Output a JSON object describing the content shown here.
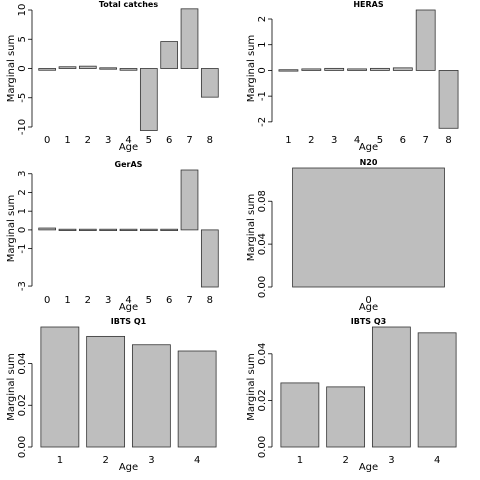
{
  "chart_data": [
    {
      "type": "bar",
      "title": "Total catches",
      "xlabel": "Age",
      "ylabel": "Marginal sum",
      "categories": [
        "0",
        "1",
        "2",
        "3",
        "4",
        "5",
        "6",
        "7",
        "8"
      ],
      "values": [
        -0.3,
        0.3,
        0.4,
        0.2,
        -0.3,
        -10.6,
        4.6,
        10.2,
        -4.9
      ],
      "ylim": [
        -10,
        10
      ],
      "yticks": [
        -10,
        -5,
        0,
        5,
        10
      ],
      "bar_color": "#bebebe"
    },
    {
      "type": "bar",
      "title": "HERAS",
      "xlabel": "Age",
      "ylabel": "Marginal sum",
      "categories": [
        "1",
        "2",
        "3",
        "4",
        "5",
        "6",
        "7",
        "8"
      ],
      "values": [
        -0.02,
        0.06,
        0.08,
        0.06,
        0.08,
        0.1,
        2.35,
        -2.25
      ],
      "ylim": [
        -2.2,
        2.35
      ],
      "yticks": [
        -2,
        -1,
        0,
        1,
        2
      ],
      "bar_color": "#bebebe"
    },
    {
      "type": "bar",
      "title": "GerAS",
      "xlabel": "Age",
      "ylabel": "Marginal sum",
      "categories": [
        "0",
        "1",
        "2",
        "3",
        "4",
        "5",
        "6",
        "7",
        "8"
      ],
      "values": [
        0.1,
        0.05,
        0.05,
        0.05,
        0.03,
        0.03,
        0.02,
        3.2,
        -3.05
      ],
      "ylim": [
        -3.05,
        3.2
      ],
      "yticks": [
        -3,
        -1,
        0,
        1,
        2,
        3
      ],
      "ytick_labels": [
        "-3",
        "-1",
        "0",
        "1",
        "2",
        "3"
      ],
      "bar_color": "#bebebe"
    },
    {
      "type": "bar",
      "title": "N20",
      "xlabel": "Age",
      "ylabel": "Marginal sum",
      "categories": [
        "0"
      ],
      "values": [
        0.111
      ],
      "ylim": [
        0,
        0.111
      ],
      "yticks": [
        0,
        0.04,
        0.08
      ],
      "ytick_labels": [
        "0.00",
        "0.04",
        "0.08"
      ],
      "bar_color": "#bebebe"
    },
    {
      "type": "bar",
      "title": "IBTS Q1",
      "xlabel": "Age",
      "ylabel": "Marginal sum",
      "categories": [
        "1",
        "2",
        "3",
        "4"
      ],
      "values": [
        0.0575,
        0.053,
        0.049,
        0.046
      ],
      "ylim": [
        0,
        0.0575
      ],
      "yticks": [
        0,
        0.02,
        0.04
      ],
      "ytick_labels": [
        "0.00",
        "0.02",
        "0.04"
      ],
      "bar_color": "#bebebe"
    },
    {
      "type": "bar",
      "title": "IBTS Q3",
      "xlabel": "Age",
      "ylabel": "Marginal sum",
      "categories": [
        "1",
        "2",
        "3",
        "4"
      ],
      "values": [
        0.0275,
        0.0258,
        0.0515,
        0.049
      ],
      "ylim": [
        0,
        0.0515
      ],
      "yticks": [
        0,
        0.02,
        0.04
      ],
      "ytick_labels": [
        "0.00",
        "0.02",
        "0.04"
      ],
      "bar_color": "#bebebe"
    }
  ]
}
